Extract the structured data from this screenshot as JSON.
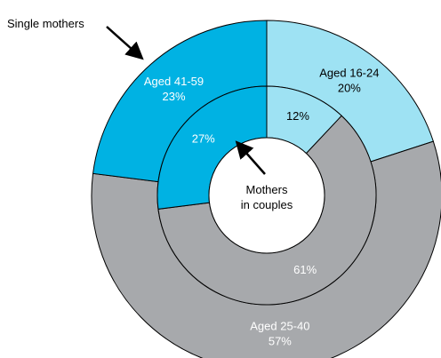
{
  "chart_data": {
    "type": "nested-donut",
    "categories": [
      "Aged 16-24",
      "Aged 25-40",
      "Aged 41-59"
    ],
    "colors": [
      "#9ee2f3",
      "#a7a9ac",
      "#00b2e3"
    ],
    "series": [
      {
        "name": "Single mothers",
        "values": [
          20,
          57,
          23
        ],
        "value_labels": [
          "20%",
          "57%",
          "23%"
        ]
      },
      {
        "name": "Mothers in couples",
        "values": [
          12,
          61,
          27
        ],
        "value_labels": [
          "12%",
          "61%",
          "27%"
        ]
      }
    ]
  }
}
